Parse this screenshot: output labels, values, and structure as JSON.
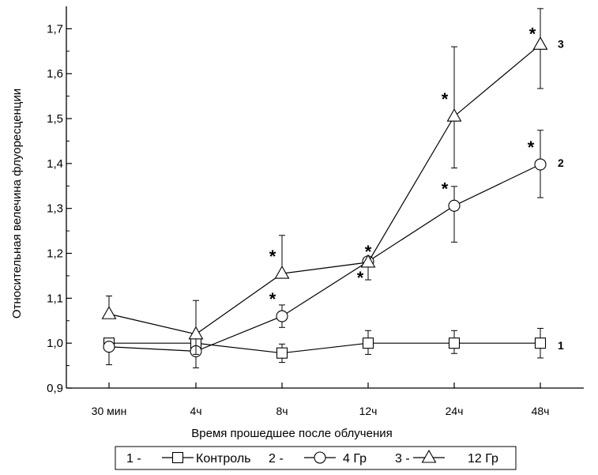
{
  "chart_data": {
    "type": "line",
    "title": "",
    "xlabel": "Время прошедшее после облучения",
    "ylabel": "Относительная велечина флуоресценции",
    "categories": [
      "30 мин",
      "4ч",
      "8ч",
      "12ч",
      "24ч",
      "48ч"
    ],
    "ylim": [
      0.9,
      1.75
    ],
    "yticks": [
      "0,9",
      "1,0",
      "1,1",
      "1,2",
      "1,3",
      "1,4",
      "1,5",
      "1,6",
      "1,7"
    ],
    "grid": false,
    "series": [
      {
        "id": "1",
        "name": "Контроль",
        "legend_prefix": "1 -",
        "marker": "square",
        "values": [
          1.0,
          1.0,
          0.978,
          1.0,
          1.0,
          1.0
        ],
        "err_hi": [
          1.0,
          1.0,
          0.998,
          1.028,
          1.028,
          1.033
        ],
        "err_lo": [
          1.0,
          1.0,
          0.957,
          0.975,
          0.977,
          0.967
        ],
        "label": "1",
        "stars": []
      },
      {
        "id": "2",
        "name": "4 Гр",
        "legend_prefix": "2 -",
        "marker": "circle",
        "values": [
          0.992,
          0.982,
          1.06,
          1.182,
          1.306,
          1.398
        ],
        "err_hi": [
          0.992,
          1.023,
          1.085,
          1.182,
          1.349,
          1.474
        ],
        "err_lo": [
          0.952,
          0.945,
          1.035,
          1.141,
          1.225,
          1.324
        ],
        "label": "2",
        "stars": [
          false,
          false,
          true,
          true,
          true,
          true
        ]
      },
      {
        "id": "3",
        "name": "12 Гр",
        "legend_prefix": "3 -",
        "marker": "triangle",
        "values": [
          1.065,
          1.02,
          1.155,
          1.18,
          1.505,
          1.665
        ],
        "err_hi": [
          1.105,
          1.095,
          1.24,
          1.18,
          1.66,
          1.745
        ],
        "err_lo": [
          1.065,
          0.975,
          1.155,
          1.18,
          1.39,
          1.567
        ],
        "label": "3",
        "stars": [
          false,
          false,
          true,
          true,
          true,
          true
        ]
      }
    ],
    "legend_position": "bottom"
  }
}
